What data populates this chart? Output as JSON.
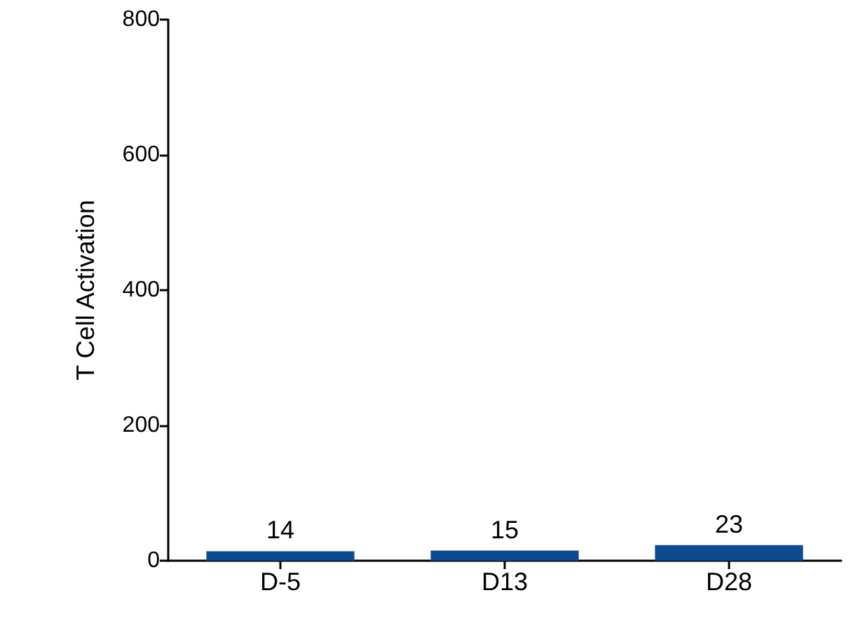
{
  "chart_data": {
    "type": "bar",
    "ylabel": "T Cell Activation",
    "categories": [
      "D-5",
      "D13",
      "D28"
    ],
    "values": [
      14,
      15,
      23
    ],
    "color": "#0d4a8f",
    "ylim": [
      0,
      800
    ],
    "yticks": [
      0,
      200,
      400,
      600,
      800
    ],
    "grid": false,
    "data_labels": true
  }
}
